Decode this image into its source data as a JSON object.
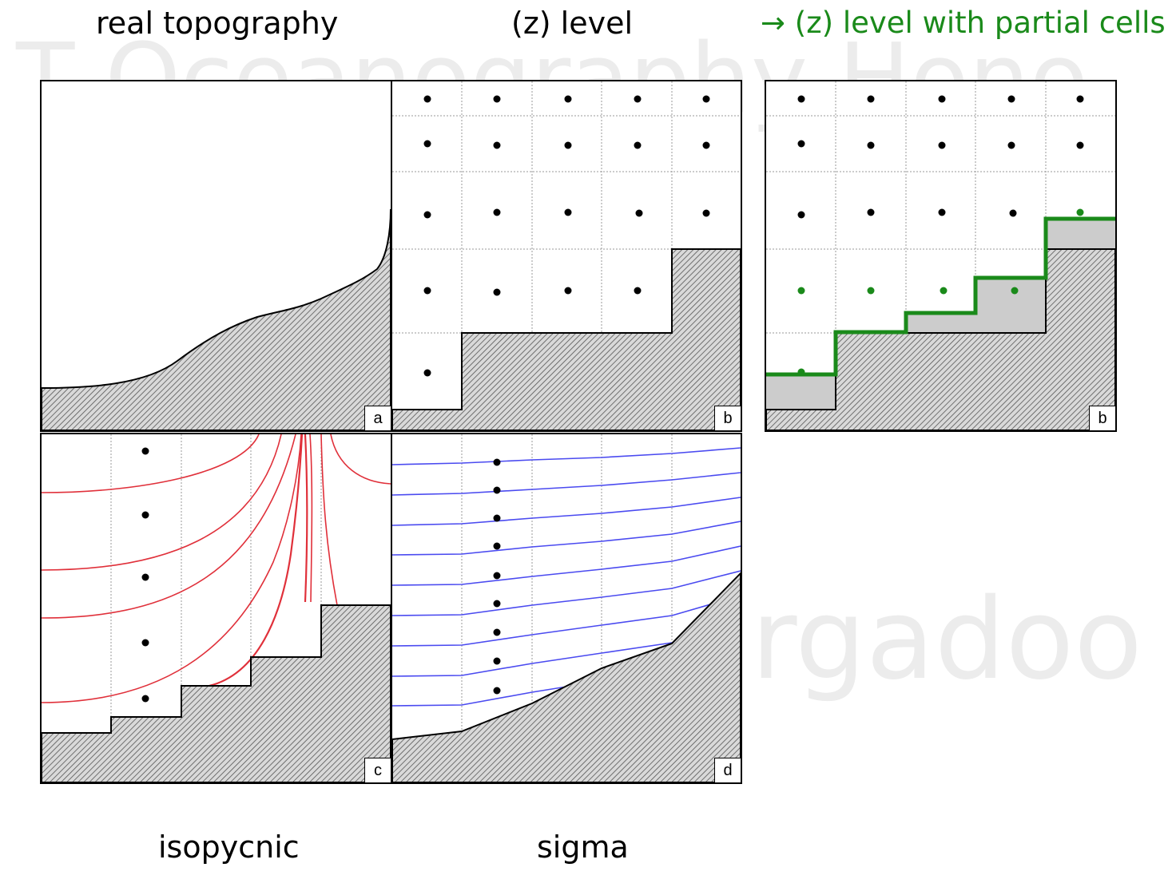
{
  "headings": {
    "real_topography": "real topography",
    "z_level": "(z) level",
    "z_level_partial": "(z) level with partial cells",
    "arrow": "→",
    "isopycnic": "isopycnic",
    "sigma": "sigma"
  },
  "panel_labels": {
    "a": "a",
    "b": "b",
    "b_partial": "b",
    "c": "c",
    "d": "d"
  },
  "watermark": {
    "line1": "T Oceanography Hono",
    "line2": "rgadoo"
  },
  "colors": {
    "isopycnal_lines": "#e0303a",
    "sigma_lines": "#4a4af0",
    "partial_cells_highlight": "#1a8a1a",
    "partial_fill": "#cccccc",
    "topography_hatch": "#555555"
  }
}
